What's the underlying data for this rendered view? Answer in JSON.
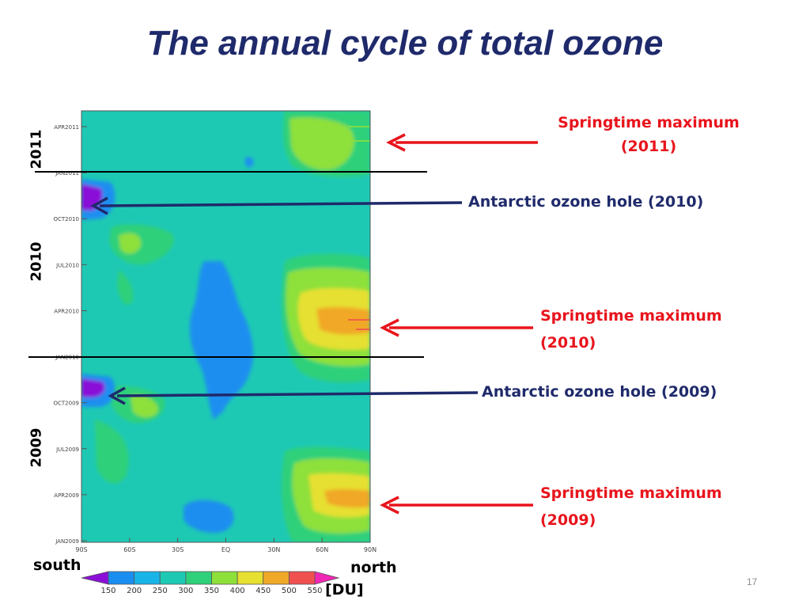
{
  "slide": {
    "title": "The annual cycle of total ozone",
    "page_number": "17"
  },
  "annotations": {
    "spring_2011": "Springtime maximum (2011)",
    "hole_2010": "Antarctic ozone hole (2010)",
    "spring_2010_line1": "Springtime  maximum",
    "spring_2010_line2": "(2010)",
    "hole_2009": "Antarctic ozone hole (2009)",
    "spring_2009_line1": "Springtime  maximum",
    "spring_2009_line2": "(2009)"
  },
  "year_labels": [
    "2011",
    "2010",
    "2009"
  ],
  "colors": {
    "title": "#1f2a6b",
    "red_annotation": "#e8141c",
    "navy_annotation": "#1f2a6b"
  },
  "chart_data": {
    "type": "heatmap",
    "x_ticks": [
      "90S",
      "60S",
      "30S",
      "EQ",
      "30N",
      "60N",
      "90N"
    ],
    "y_ticks": [
      "JAN2009",
      "APR2009",
      "JUL2009",
      "OCT2009",
      "JAN2010",
      "APR2010",
      "JUL2010",
      "OCT2010",
      "JAN2011",
      "APR2011"
    ],
    "xlim": [
      -90,
      90
    ],
    "legend_labels": {
      "south": "south",
      "north": "north",
      "unit": "[DU]"
    },
    "colorbar": {
      "levels": [
        150,
        200,
        250,
        300,
        350,
        400,
        450,
        500,
        550
      ],
      "colors": [
        "#8a10d8",
        "#1a8ef0",
        "#18b4e8",
        "#1ec9b4",
        "#2ed07a",
        "#8ee03a",
        "#e6e030",
        "#f0a828",
        "#f05050",
        "#f028b4"
      ]
    }
  }
}
